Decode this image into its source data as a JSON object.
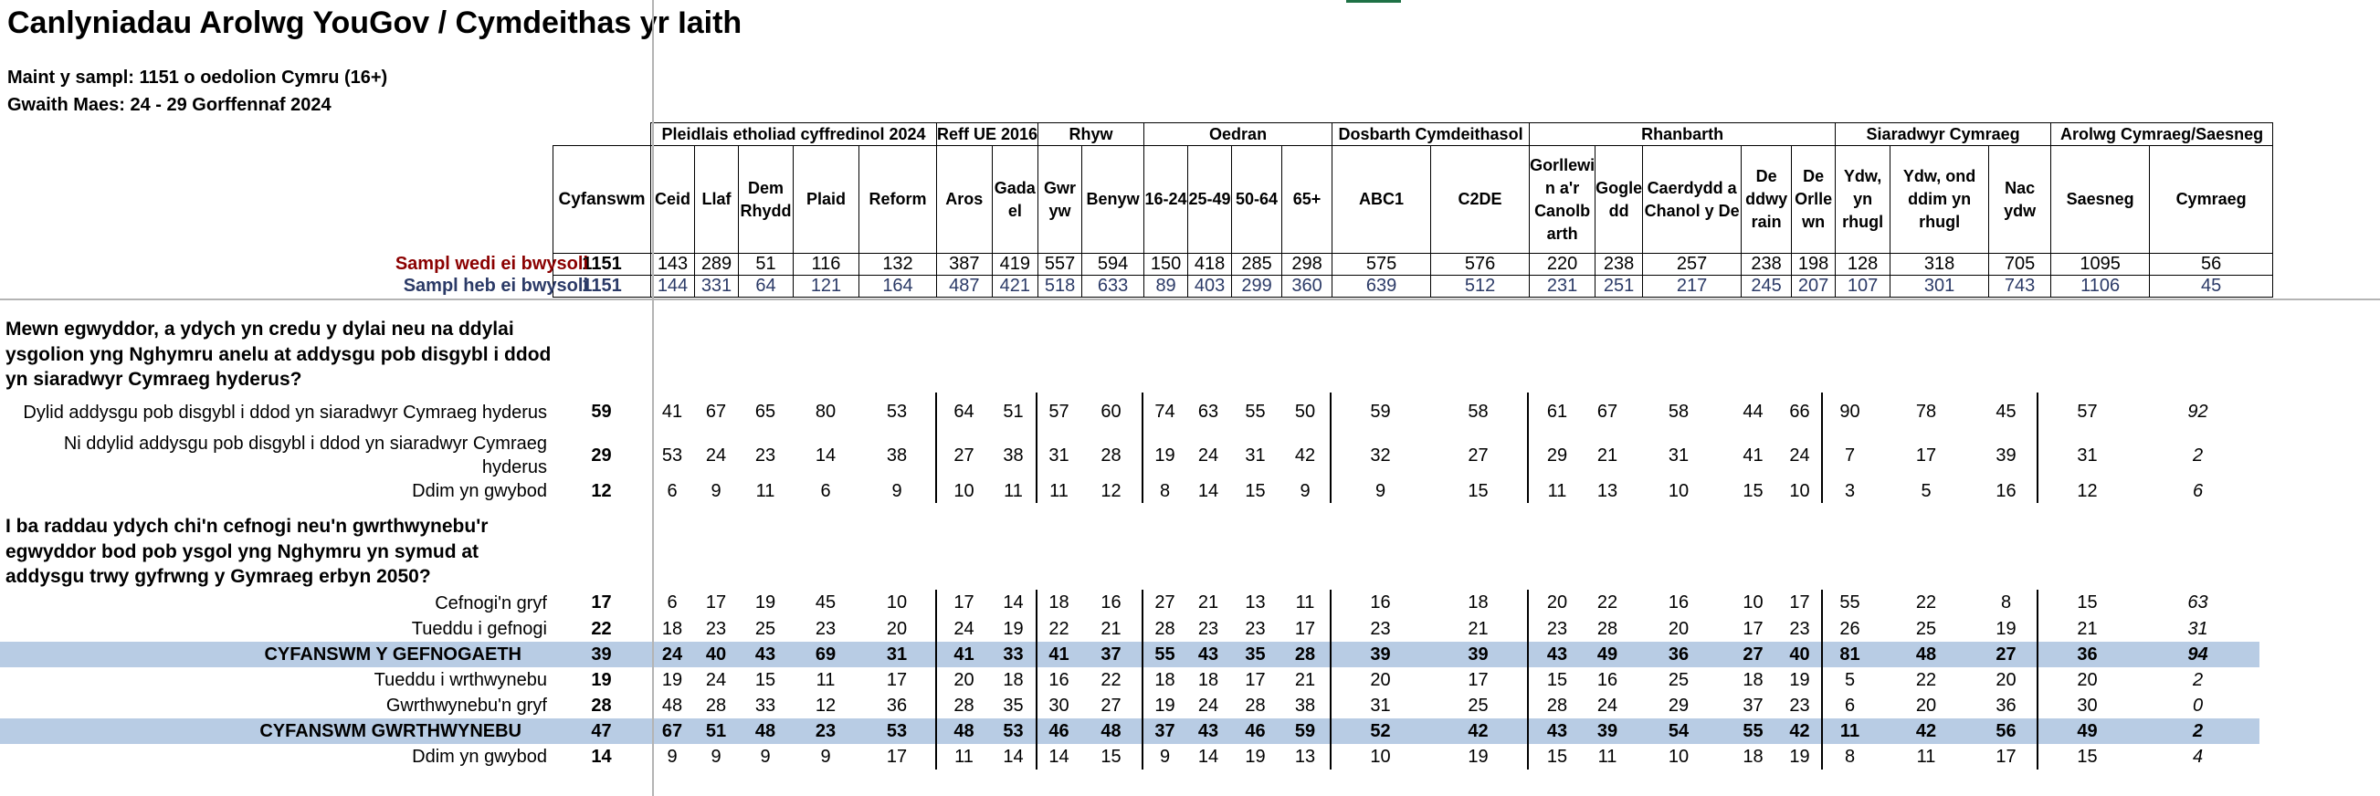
{
  "title": "Canlyniadau Arolwg YouGov / Cymdeithas yr Iaith",
  "sample_size_line": "Maint y sampl: 1151 o oedolion Cymru (16+)",
  "fieldwork_line": "Gwaith Maes: 24 - 29 Gorffennaf 2024",
  "groups": [
    {
      "label": "Pleidlais etholiad cyffredinol 2024"
    },
    {
      "label": "Reff UE 2016"
    },
    {
      "label": "Rhyw"
    },
    {
      "label": "Oedran"
    },
    {
      "label": "Dosbarth Cymdeithasol"
    },
    {
      "label": "Rhanbarth"
    },
    {
      "label": "Siaradwyr Cymraeg"
    },
    {
      "label": "Arolwg Cymraeg/Saesneg"
    }
  ],
  "columns": [
    "Cyfanswm",
    "Ceid",
    "Llaf",
    "Dem Rhydd",
    "Plaid",
    "Reform",
    "Aros",
    "Gada el",
    "Gwr yw",
    "Benyw",
    "16-24",
    "25-49",
    "50-64",
    "65+",
    "ABC1",
    "C2DE",
    "Gorllewi n a'r Canolb arth",
    "Gogle dd",
    "Caerdydd a Chanol y De",
    "De ddwy rain",
    "De Orlle wn",
    "Ydw, yn rhugl",
    "Ydw, ond ddim yn rhugl",
    "Nac ydw",
    "Saesneg",
    "Cymraeg"
  ],
  "weighted": {
    "label": "Sampl wedi ei bwysoli",
    "values": [
      "1151",
      "143",
      "289",
      "51",
      "116",
      "132",
      "387",
      "419",
      "557",
      "594",
      "150",
      "418",
      "285",
      "298",
      "575",
      "576",
      "220",
      "238",
      "257",
      "238",
      "198",
      "128",
      "318",
      "705",
      "1095",
      "56"
    ]
  },
  "unweighted": {
    "label": "Sampl heb ei bwysoli",
    "values": [
      "1151",
      "144",
      "331",
      "64",
      "121",
      "164",
      "487",
      "421",
      "518",
      "633",
      "89",
      "403",
      "299",
      "360",
      "639",
      "512",
      "231",
      "251",
      "217",
      "245",
      "207",
      "107",
      "301",
      "743",
      "1106",
      "45"
    ]
  },
  "questions": [
    {
      "text": "Mewn egwyddor, a ydych yn credu y dylai neu na ddylai ysgolion yng Nghymru anelu at addysgu pob disgybl i ddod yn siaradwyr Cymraeg hyderus?",
      "rows": [
        {
          "label": "Dylid addysgu pob disgybl i ddod yn siaradwyr Cymraeg hyderus",
          "values": [
            "59",
            "41",
            "67",
            "65",
            "80",
            "53",
            "64",
            "51",
            "57",
            "60",
            "74",
            "63",
            "55",
            "50",
            "59",
            "58",
            "61",
            "67",
            "58",
            "44",
            "66",
            "90",
            "78",
            "45",
            "57",
            "92"
          ]
        },
        {
          "label": "Ni ddylid addysgu pob disgybl i ddod yn siaradwyr Cymraeg hyderus",
          "values": [
            "29",
            "53",
            "24",
            "23",
            "14",
            "38",
            "27",
            "38",
            "31",
            "28",
            "19",
            "24",
            "31",
            "42",
            "32",
            "27",
            "29",
            "21",
            "31",
            "41",
            "24",
            "7",
            "17",
            "39",
            "31",
            "2"
          ]
        },
        {
          "label": "Ddim yn gwybod",
          "values": [
            "12",
            "6",
            "9",
            "11",
            "6",
            "9",
            "10",
            "11",
            "11",
            "12",
            "8",
            "14",
            "15",
            "9",
            "9",
            "15",
            "11",
            "13",
            "10",
            "15",
            "10",
            "3",
            "5",
            "16",
            "12",
            "6"
          ]
        }
      ]
    },
    {
      "text": "I ba raddau ydych chi'n cefnogi neu'n gwrthwynebu'r egwyddor bod pob ysgol yng Nghymru yn symud at addysgu trwy gyfrwng y Gymraeg erbyn 2050?",
      "rows": [
        {
          "label": "Cefnogi'n gryf",
          "net": false,
          "values": [
            "17",
            "6",
            "17",
            "19",
            "45",
            "10",
            "17",
            "14",
            "18",
            "16",
            "27",
            "21",
            "13",
            "11",
            "16",
            "18",
            "20",
            "22",
            "16",
            "10",
            "17",
            "55",
            "22",
            "8",
            "15",
            "63"
          ]
        },
        {
          "label": "Tueddu i gefnogi",
          "net": false,
          "values": [
            "22",
            "18",
            "23",
            "25",
            "23",
            "20",
            "24",
            "19",
            "22",
            "21",
            "28",
            "23",
            "23",
            "17",
            "23",
            "21",
            "23",
            "28",
            "20",
            "17",
            "23",
            "26",
            "25",
            "19",
            "21",
            "31"
          ]
        },
        {
          "label": "CYFANSWM Y GEFNOGAETH",
          "net": true,
          "values": [
            "39",
            "24",
            "40",
            "43",
            "69",
            "31",
            "41",
            "33",
            "41",
            "37",
            "55",
            "43",
            "35",
            "28",
            "39",
            "39",
            "43",
            "49",
            "36",
            "27",
            "40",
            "81",
            "48",
            "27",
            "36",
            "94"
          ]
        },
        {
          "label": "Tueddu i wrthwynebu",
          "net": false,
          "values": [
            "19",
            "19",
            "24",
            "15",
            "11",
            "17",
            "20",
            "18",
            "16",
            "22",
            "18",
            "18",
            "17",
            "21",
            "20",
            "17",
            "15",
            "16",
            "25",
            "18",
            "19",
            "5",
            "22",
            "20",
            "20",
            "2"
          ]
        },
        {
          "label": "Gwrthwynebu'n gryf",
          "net": false,
          "values": [
            "28",
            "48",
            "28",
            "33",
            "12",
            "36",
            "28",
            "35",
            "30",
            "27",
            "19",
            "24",
            "28",
            "38",
            "31",
            "25",
            "28",
            "24",
            "29",
            "37",
            "23",
            "6",
            "20",
            "36",
            "30",
            "0"
          ]
        },
        {
          "label": "CYFANSWM GWRTHWYNEBU",
          "net": true,
          "values": [
            "47",
            "67",
            "51",
            "48",
            "23",
            "53",
            "48",
            "53",
            "46",
            "48",
            "37",
            "43",
            "46",
            "59",
            "52",
            "42",
            "43",
            "39",
            "54",
            "55",
            "42",
            "11",
            "42",
            "56",
            "49",
            "2"
          ]
        },
        {
          "label": "Ddim yn gwybod",
          "net": false,
          "values": [
            "14",
            "9",
            "9",
            "9",
            "9",
            "17",
            "11",
            "14",
            "14",
            "15",
            "9",
            "14",
            "19",
            "13",
            "10",
            "19",
            "15",
            "11",
            "10",
            "18",
            "19",
            "8",
            "11",
            "17",
            "15",
            "4"
          ]
        }
      ]
    }
  ]
}
